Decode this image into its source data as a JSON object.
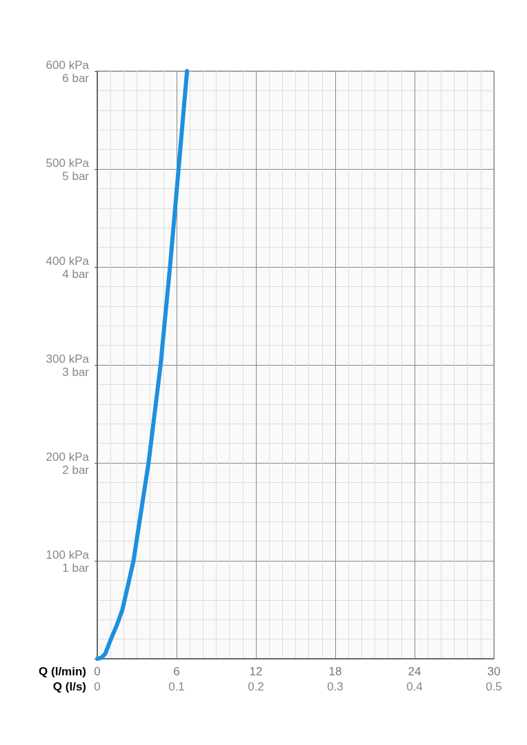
{
  "chart_data": {
    "type": "line",
    "xlabel": "Q (l/min)",
    "x2label": "Q (l/s)",
    "x": [
      0,
      0.3,
      0.6,
      1.03,
      1.5,
      1.9,
      2.74,
      3.88,
      4.79,
      5.5,
      6.15,
      6.79
    ],
    "series": [
      {
        "color": "#1e8fe0",
        "values": [
          0,
          1,
          5,
          20,
          35,
          50,
          100,
          200,
          300,
          400,
          500,
          600
        ]
      }
    ],
    "xlim": [
      0,
      30
    ],
    "xticks": [
      0,
      6,
      12,
      18,
      24,
      30
    ],
    "x2lim": [
      0,
      0.5
    ],
    "x2ticks": [
      0,
      0.1,
      0.2,
      0.3,
      0.4,
      0.5
    ],
    "ylim": [
      0,
      600
    ],
    "yticks": [
      {
        "value": 0,
        "label": null
      },
      {
        "value": 100,
        "label": "100 kPa"
      },
      {
        "value": 200,
        "label": "200 kPa"
      },
      {
        "value": 300,
        "label": "300 kPa"
      },
      {
        "value": 400,
        "label": "400 kPa"
      },
      {
        "value": 500,
        "label": "500 kPa"
      },
      {
        "value": 600,
        "label": "600 kPa"
      }
    ],
    "y2lim": [
      0,
      6
    ],
    "y2ticks": [
      {
        "value": 0,
        "label": null
      },
      {
        "value": 1,
        "label": "1 bar"
      },
      {
        "value": 2,
        "label": "2 bar"
      },
      {
        "value": 3,
        "label": "3 bar"
      },
      {
        "value": 4,
        "label": "4 bar"
      },
      {
        "value": 5,
        "label": "5 bar"
      },
      {
        "value": 6,
        "label": "6 bar"
      }
    ],
    "grid": true,
    "marker": "none",
    "line_style": "solid"
  }
}
